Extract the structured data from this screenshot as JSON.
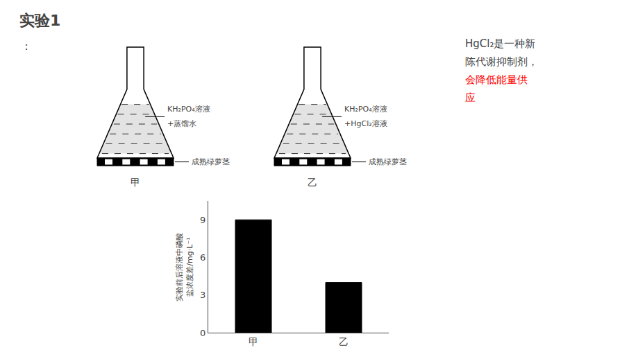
{
  "chart_data": {
    "type": "bar",
    "title": "实验1",
    "categories": [
      "甲",
      "乙"
    ],
    "values": [
      9.0,
      4.0
    ],
    "color": "#000000",
    "ylim": [
      0,
      10.5
    ],
    "yticks": [
      0,
      3,
      6,
      9
    ],
    "ylabel": "实验前后溶液中磷酸\n盐浓度差/mg·L⁻¹",
    "grid": false,
    "annotations": [
      {
        "text": "："
      },
      {
        "text": "KH₂PO₄溶液"
      },
      {
        "text": "+蒸馏水"
      },
      {
        "text": "成熟绿萝茎"
      },
      {
        "text": "甲"
      },
      {
        "text": "KH₂PO₄溶液"
      },
      {
        "text": "+HgCl₂溶液"
      },
      {
        "text": "成熟绿萝茎"
      },
      {
        "text": "乙"
      },
      {
        "text": "HgCl₂是一种新"
      },
      {
        "text": "陈代谢抑制剂，"
      },
      {
        "text": "会降低能量供",
        "color": "red"
      },
      {
        "text": "应",
        "color": "red"
      }
    ]
  }
}
